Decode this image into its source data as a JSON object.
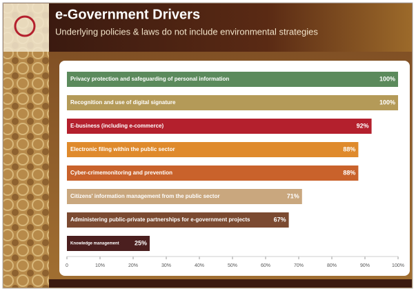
{
  "chart_data": {
    "type": "bar",
    "orientation": "horizontal",
    "title": "e-Government Drivers",
    "subtitle": "Underlying policies & laws do not include environmental strategies",
    "categories": [
      "Privacy protection and safeguarding of personal information",
      "Recognition and use of digital signature",
      "E-business (including e-commerce)",
      "Electronic filing within the public sector",
      "Cyber-crimemonitoring and prevention",
      "Citizens' information management from the public sector",
      "Administering public-private partnerships for e-government projects",
      "Knowledge management"
    ],
    "values": [
      100,
      100,
      92,
      88,
      88,
      71,
      67,
      25
    ],
    "value_labels": [
      "100%",
      "100%",
      "92%",
      "88%",
      "88%",
      "71%",
      "67%",
      "25%"
    ],
    "colors": [
      "#5b8a5c",
      "#b49a58",
      "#b4202d",
      "#df8a2c",
      "#c9622b",
      "#c9a77e",
      "#7b4a31",
      "#4b1f1f"
    ],
    "xlim": [
      0,
      100
    ],
    "xticks": [
      0,
      {
        "value": 10,
        "label": "10%"
      },
      {
        "value": 20,
        "label": "20%"
      },
      {
        "value": 30,
        "label": "30%"
      },
      {
        "value": 40,
        "label": "40%"
      },
      {
        "value": 50,
        "label": "50%"
      },
      {
        "value": 60,
        "label": "60%"
      },
      {
        "value": 70,
        "label": "70%"
      },
      {
        "value": 80,
        "label": "80%"
      },
      {
        "value": 90,
        "label": "90%"
      },
      {
        "value": 100,
        "label": "100%"
      }
    ]
  }
}
